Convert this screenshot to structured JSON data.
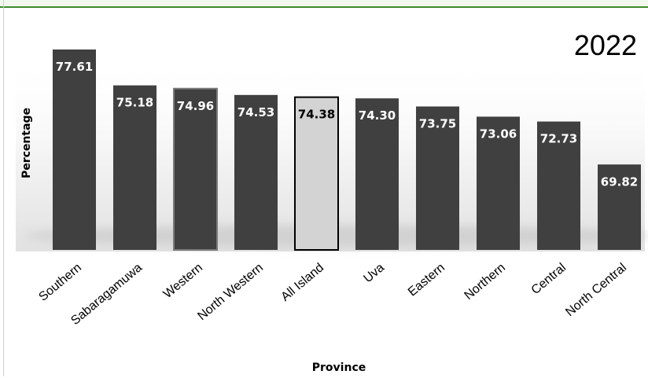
{
  "chart_data": {
    "type": "bar",
    "title": "2022",
    "xlabel": "Province",
    "ylabel": "Percentage",
    "categories": [
      "Southern",
      "Sabaragamuwa",
      "Western",
      "North Western",
      "All Island",
      "Uva",
      "Eastern",
      "Northern",
      "Central",
      "North Central"
    ],
    "values": [
      77.61,
      75.18,
      74.96,
      74.53,
      74.38,
      74.3,
      73.75,
      73.06,
      72.73,
      69.82
    ],
    "value_labels": [
      "77.61",
      "75.18",
      "74.96",
      "74.53",
      "74.38",
      "74.30",
      "73.75",
      "73.06",
      "72.73",
      "69.82"
    ],
    "highlighted": [
      "Western",
      "All Island"
    ],
    "bar_color": "#404040",
    "highlight_color": "#d3d3d3",
    "grid": false,
    "legend": "none"
  }
}
